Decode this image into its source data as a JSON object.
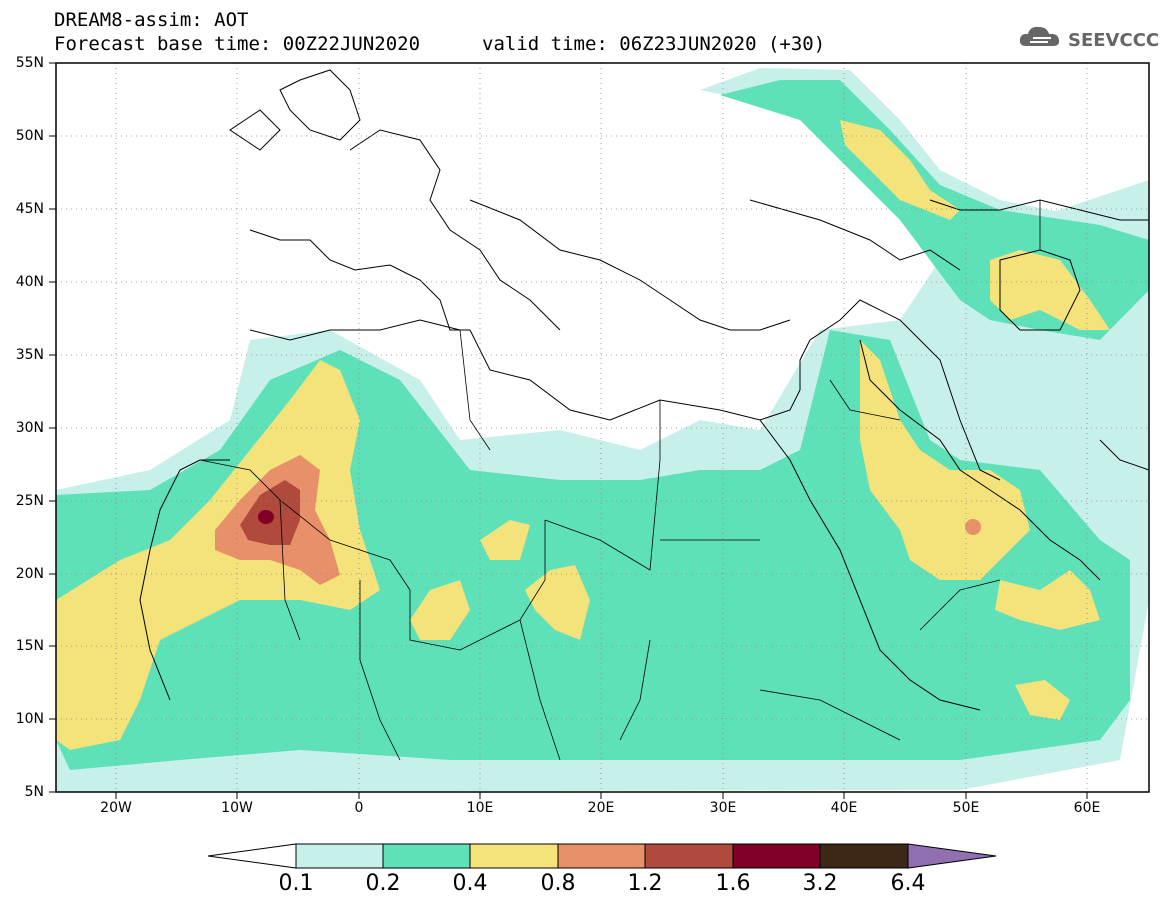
{
  "header": {
    "line1": "DREAM8-assim: AOT",
    "line2": "Forecast base time: 00Z22JUN2020",
    "valid": "valid time: 06Z23JUN2020 (+30)",
    "logo_text": "SEEVCCC"
  },
  "map": {
    "lat_labels": [
      "55N",
      "50N",
      "45N",
      "40N",
      "35N",
      "30N",
      "25N",
      "20N",
      "15N",
      "10N",
      "5N"
    ],
    "lon_labels": [
      "20W",
      "10W",
      "0",
      "10E",
      "20E",
      "30E",
      "40E",
      "50E",
      "60E"
    ]
  },
  "colorbar": {
    "labels": [
      "0.1",
      "0.2",
      "0.4",
      "0.8",
      "1.2",
      "1.6",
      "3.2",
      "6.4"
    ],
    "colors": [
      "#c8f0ea",
      "#5ee0b8",
      "#f4e27a",
      "#e8906a",
      "#b04a3c",
      "#800028",
      "#3c2814",
      "#9070b0"
    ]
  },
  "legend_colors": {
    "aot_0.1": "#c8f0ea",
    "aot_0.2": "#5ee0b8",
    "aot_0.4": "#f4e27a",
    "aot_0.8": "#e8906a",
    "aot_1.2": "#b04a3c",
    "aot_1.6": "#800028"
  }
}
